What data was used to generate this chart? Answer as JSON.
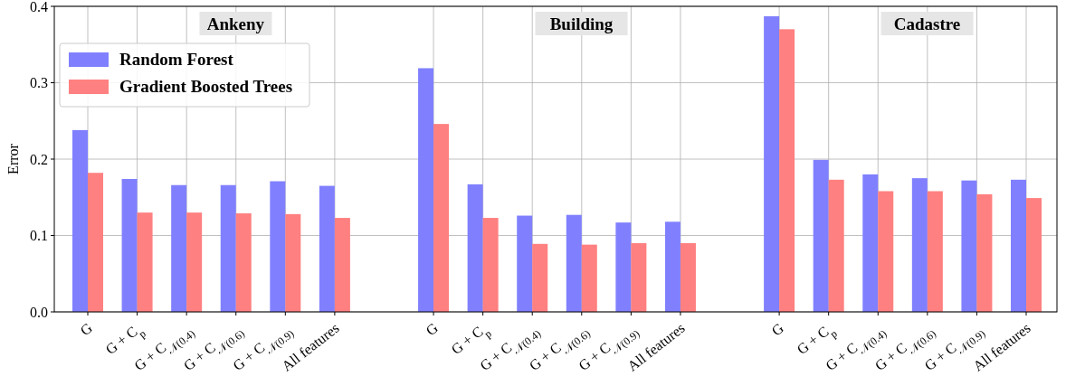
{
  "chart_data": {
    "type": "bar",
    "ylabel": "Error",
    "categories": [
      "G",
      "G + C$_{p}$",
      "G + C$_{𝒩(0.4)}$",
      "G + C$_{𝒩(0.6)}$",
      "G + C$_{𝒩(0.9)}$",
      "All features",
      null,
      "G",
      "G + C$_{p}$",
      "G + C$_{𝒩(0.4)}$",
      "G + C$_{𝒩(0.6)}$",
      "G + C$_{𝒩(0.9)}$",
      "All features",
      null,
      "G",
      "G + C$_{p}$",
      "G + C$_{𝒩(0.4)}$",
      "G + C$_{𝒩(0.6)}$",
      "G + C$_{𝒩(0.9)}$",
      "All features"
    ],
    "series": [
      {
        "name": "Random Forest",
        "color": "#8080ff",
        "values": [
          0.238,
          0.174,
          0.166,
          0.166,
          0.171,
          0.165,
          null,
          0.319,
          0.167,
          0.126,
          0.127,
          0.117,
          0.118,
          null,
          0.387,
          0.199,
          0.18,
          0.175,
          0.172,
          0.173
        ]
      },
      {
        "name": "Gradient Boosted Trees",
        "color": "#ff8080",
        "values": [
          0.182,
          0.13,
          0.13,
          0.129,
          0.128,
          0.123,
          null,
          0.246,
          0.123,
          0.089,
          0.088,
          0.09,
          0.09,
          null,
          0.37,
          0.173,
          0.158,
          0.158,
          0.154,
          0.149
        ]
      }
    ],
    "annotations": [
      "Ankeny",
      "Building",
      "Cadastre"
    ],
    "ylim": [
      0,
      0.4
    ],
    "yticks": [
      {
        "value": 0,
        "label": "0.0"
      },
      0.1,
      0.2,
      0.3,
      0.4
    ],
    "grid": true,
    "legend": "top left"
  }
}
